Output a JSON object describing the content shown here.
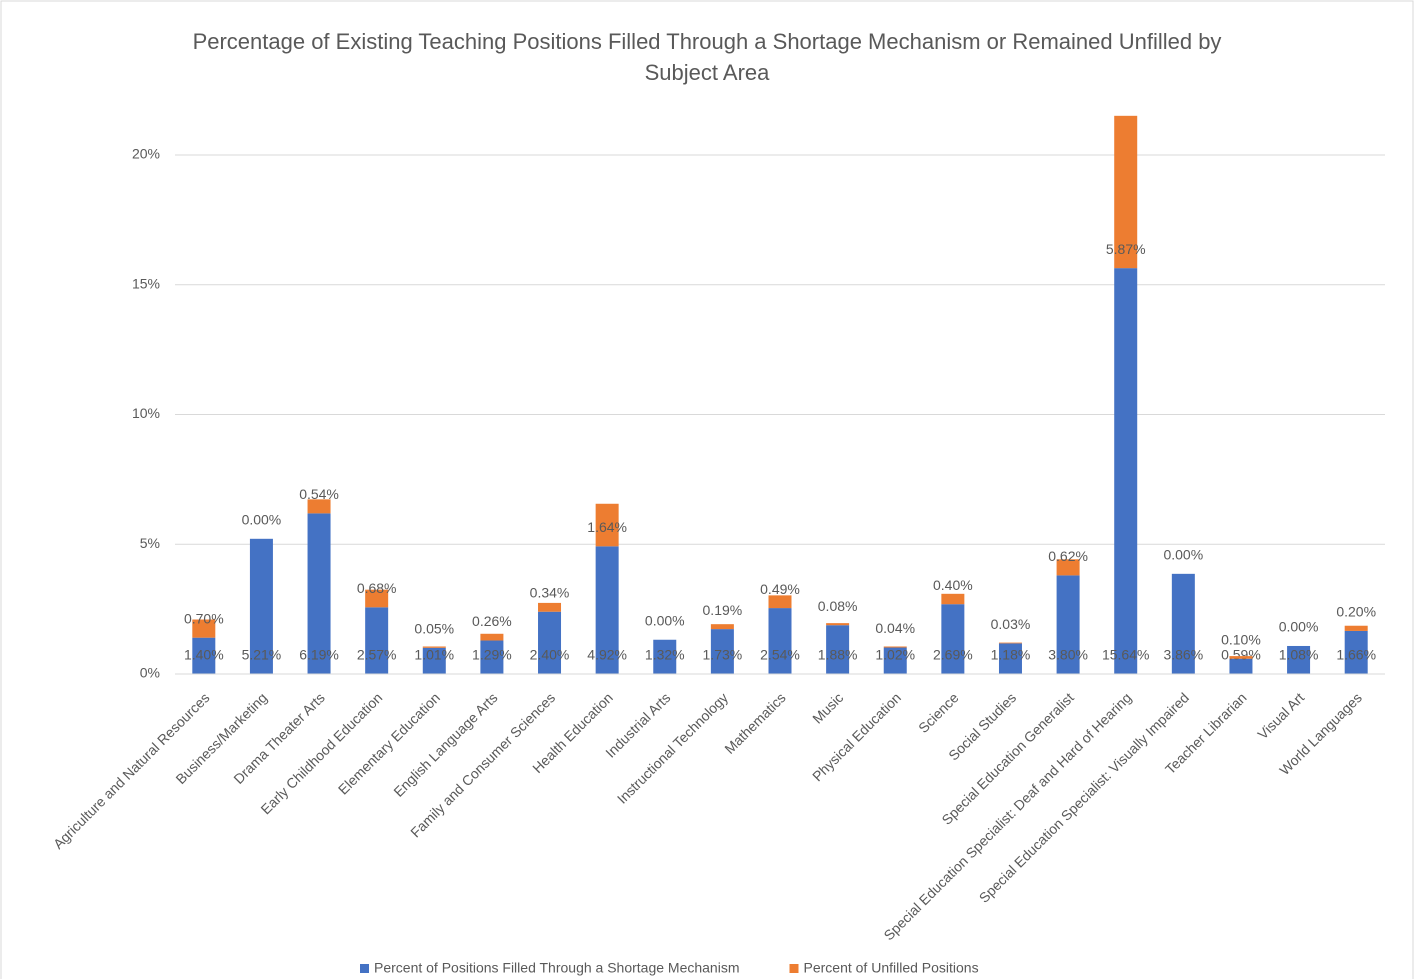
{
  "chart_data": {
    "type": "stacked_bar",
    "title": "Percentage of Existing Teaching Positions Filled Through a Shortage Mechanism or Remained Unfilled by Subject Area",
    "categories": [
      "Agriculture and Natural Resources",
      "Business/Marketing",
      "Drama Theater Arts",
      "Early Childhood Education",
      "Elementary Education",
      "English Language Arts",
      "Family and Consumer Sciences",
      "Health Education",
      "Industrial Arts",
      "Instructional Technology",
      "Mathematics",
      "Music",
      "Physical Education",
      "Science",
      "Social Studies",
      "Special Education Generalist",
      "Special Education Specialist: Deaf and Hard of Hearing",
      "Special Education Specialist: Visually Impaired",
      "Teacher Librarian",
      "Visual Art",
      "World Languages"
    ],
    "series": [
      {
        "name": "Percent of Positions Filled Through a Shortage Mechanism",
        "color": "#4472c4",
        "values": [
          1.4,
          5.21,
          6.19,
          2.57,
          1.01,
          1.29,
          2.4,
          4.92,
          1.32,
          1.73,
          2.54,
          1.88,
          1.02,
          2.69,
          1.18,
          3.8,
          15.64,
          3.86,
          0.59,
          1.08,
          1.66
        ],
        "value_labels": [
          "1.40%",
          "5.21%",
          "6.19%",
          "2.57%",
          "1.01%",
          "1.29%",
          "2.40%",
          "4.92%",
          "1.32%",
          "1.73%",
          "2.54%",
          "1.88%",
          "1.02%",
          "2.69%",
          "1.18%",
          "3.80%",
          "15.64%",
          "3.86%",
          "0.59%",
          "1.08%",
          "1.66%"
        ]
      },
      {
        "name": "Percent of Unfilled Positions",
        "color": "#ed7d31",
        "values": [
          0.7,
          0.0,
          0.54,
          0.68,
          0.05,
          0.26,
          0.34,
          1.64,
          0.0,
          0.19,
          0.49,
          0.08,
          0.04,
          0.4,
          0.03,
          0.62,
          5.87,
          0.0,
          0.1,
          0.0,
          0.2
        ],
        "value_labels": [
          "0.70%",
          "0.00%",
          "0.54%",
          "0.68%",
          "0.05%",
          "0.26%",
          "0.34%",
          "1.64%",
          "0.00%",
          "0.19%",
          "0.49%",
          "0.08%",
          "0.04%",
          "0.40%",
          "0.03%",
          "0.62%",
          "5.87%",
          "0.00%",
          "0.10%",
          "0.00%",
          "0.20%"
        ]
      }
    ],
    "ylim": [
      0,
      22
    ],
    "yticks": [
      {
        "value": 0,
        "label": "0%"
      },
      {
        "value": 5,
        "label": "5%"
      },
      {
        "value": 10,
        "label": "10%"
      },
      {
        "value": 15,
        "label": "15%"
      },
      {
        "value": 20,
        "label": "20%"
      }
    ],
    "grid": true,
    "legend": "bottom"
  }
}
